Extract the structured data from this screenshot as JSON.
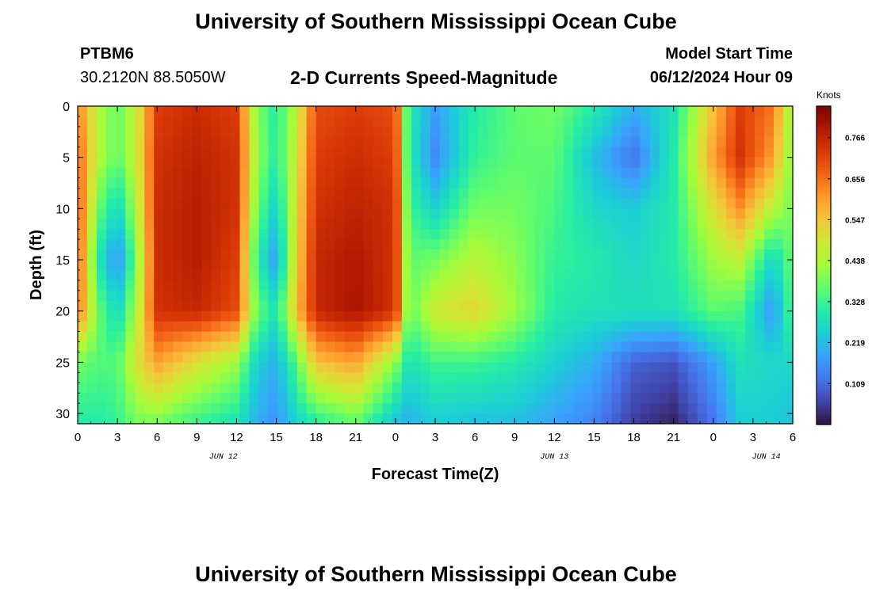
{
  "page": {
    "title": "University of Southern Mississippi Ocean Cube",
    "footer_title": "University of Southern Mississippi Ocean Cube",
    "station_id": "PTBM6",
    "coordinates": "30.2120N  88.5050W",
    "chart_title": "2-D Currents Speed-Magnitude",
    "model_start_label": "Model Start Time",
    "model_start_value": "06/12/2024 Hour 09"
  },
  "chart_data": {
    "type": "heatmap",
    "title": "2-D Currents Speed-Magnitude",
    "xlabel": "Forecast Time(Z)",
    "ylabel": "Depth (ft)",
    "colorbar_label": "Knots",
    "x_tick_labels": [
      "0",
      "3",
      "6",
      "9",
      "12",
      "15",
      "18",
      "21",
      "0",
      "3",
      "6",
      "9",
      "12",
      "15",
      "18",
      "21",
      "0",
      "3",
      "6"
    ],
    "x_tick_hours": [
      0,
      3,
      6,
      9,
      12,
      15,
      18,
      21,
      24,
      27,
      30,
      33,
      36,
      39,
      42,
      45,
      48,
      51,
      54
    ],
    "date_labels": [
      {
        "label": "JUN 12",
        "hour": 11
      },
      {
        "label": "JUN 13",
        "hour": 36
      },
      {
        "label": "JUN 14",
        "hour": 52
      }
    ],
    "xlim": [
      0,
      54
    ],
    "y_ticks": [
      0,
      5,
      10,
      15,
      20,
      25,
      30
    ],
    "ylim": [
      0,
      31
    ],
    "y_inverted": true,
    "colorbar_ticks": [
      0.766,
      0.656,
      0.547,
      0.438,
      0.328,
      0.219,
      0.109
    ],
    "value_range": [
      0.0,
      0.85
    ],
    "colormap": [
      "#30123b",
      "#4145ab",
      "#4675ed",
      "#39a2fc",
      "#1bcfd4",
      "#24eca6",
      "#61fc6c",
      "#a4fc3b",
      "#d1e834",
      "#f3c63a",
      "#fe9b2d",
      "#f36315",
      "#d93806",
      "#b11901",
      "#7a0403"
    ],
    "grid": false,
    "x_hours": [
      0,
      1.5,
      3,
      4.5,
      6,
      9,
      12,
      13.5,
      15,
      16.5,
      18,
      21,
      24,
      25,
      27,
      30,
      33,
      36,
      39,
      42,
      45,
      48,
      50,
      52.5,
      54
    ],
    "depths_ft": [
      0,
      5,
      10,
      15,
      20,
      25,
      31
    ],
    "speed_knots": [
      [
        0.64,
        0.45,
        0.36,
        0.48,
        0.72,
        0.75,
        0.72,
        0.4,
        0.3,
        0.45,
        0.7,
        0.72,
        0.7,
        0.3,
        0.18,
        0.3,
        0.36,
        0.38,
        0.3,
        0.2,
        0.28,
        0.55,
        0.72,
        0.65,
        0.4
      ],
      [
        0.68,
        0.45,
        0.36,
        0.48,
        0.74,
        0.77,
        0.74,
        0.42,
        0.3,
        0.48,
        0.72,
        0.75,
        0.72,
        0.3,
        0.15,
        0.32,
        0.36,
        0.36,
        0.22,
        0.12,
        0.3,
        0.6,
        0.74,
        0.6,
        0.38
      ],
      [
        0.7,
        0.38,
        0.25,
        0.45,
        0.75,
        0.78,
        0.74,
        0.38,
        0.24,
        0.5,
        0.74,
        0.77,
        0.74,
        0.33,
        0.25,
        0.38,
        0.38,
        0.34,
        0.26,
        0.24,
        0.3,
        0.5,
        0.62,
        0.45,
        0.38
      ],
      [
        0.7,
        0.3,
        0.15,
        0.4,
        0.75,
        0.78,
        0.72,
        0.32,
        0.17,
        0.52,
        0.76,
        0.79,
        0.74,
        0.36,
        0.38,
        0.45,
        0.4,
        0.32,
        0.3,
        0.26,
        0.3,
        0.42,
        0.46,
        0.25,
        0.38
      ],
      [
        0.66,
        0.38,
        0.25,
        0.45,
        0.74,
        0.76,
        0.7,
        0.38,
        0.28,
        0.55,
        0.76,
        0.8,
        0.74,
        0.36,
        0.48,
        0.52,
        0.42,
        0.3,
        0.28,
        0.28,
        0.28,
        0.36,
        0.34,
        0.16,
        0.36
      ],
      [
        0.38,
        0.35,
        0.35,
        0.5,
        0.6,
        0.5,
        0.42,
        0.25,
        0.2,
        0.35,
        0.55,
        0.6,
        0.4,
        0.28,
        0.33,
        0.33,
        0.3,
        0.25,
        0.2,
        0.1,
        0.08,
        0.18,
        0.28,
        0.26,
        0.26
      ],
      [
        0.3,
        0.3,
        0.32,
        0.38,
        0.38,
        0.32,
        0.28,
        0.2,
        0.16,
        0.25,
        0.3,
        0.36,
        0.22,
        0.2,
        0.24,
        0.22,
        0.22,
        0.18,
        0.14,
        0.05,
        0.02,
        0.12,
        0.24,
        0.24,
        0.22
      ]
    ]
  }
}
